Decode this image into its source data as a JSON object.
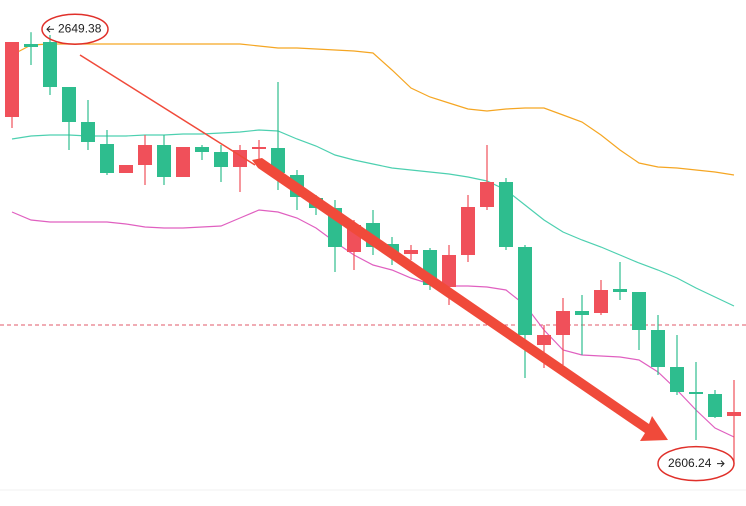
{
  "chart_data": {
    "type": "candlestick",
    "up_color": "#f0505a",
    "down_color": "#2ebd8e",
    "ylim": [
      2602.0,
      2652.6
    ],
    "open": [
      2640.9,
      2648.2,
      2648.4,
      2643.9,
      2640.4,
      2638.2,
      2635.3,
      2636.1,
      2638.1,
      2634.9,
      2637.9,
      2637.4,
      2635.9,
      2637.7,
      2637.8,
      2635.1,
      2632.8,
      2631.8,
      2627.4,
      2630.3,
      2628.2,
      2627.2,
      2627.6,
      2623.9,
      2627.1,
      2631.9,
      2634.4,
      2627.9,
      2618.1,
      2619.1,
      2621.5,
      2621.3,
      2623.7,
      2623.4,
      2619.6,
      2615.9,
      2613.4,
      2613.2,
      2611.0
    ],
    "high": [
      2648.4,
      2649.38,
      2649.1,
      2643.9,
      2642.6,
      2639.6,
      2636.1,
      2639.1,
      2639.1,
      2637.9,
      2638.1,
      2638.1,
      2638.1,
      2638.6,
      2644.4,
      2635.6,
      2633.1,
      2632.6,
      2630.6,
      2631.6,
      2628.9,
      2628.1,
      2627.8,
      2628.1,
      2633.1,
      2638.1,
      2634.8,
      2628.1,
      2620.1,
      2622.8,
      2623.1,
      2624.6,
      2626.4,
      2623.4,
      2621.1,
      2619.1,
      2616.4,
      2613.6,
      2614.6
    ],
    "low": [
      2639.8,
      2646.1,
      2643.1,
      2637.6,
      2637.6,
      2635.1,
      2635.3,
      2634.1,
      2634.1,
      2634.9,
      2636.6,
      2634.4,
      2633.4,
      2636.6,
      2633.6,
      2631.6,
      2631.1,
      2625.4,
      2625.6,
      2627.1,
      2626.1,
      2626.6,
      2623.6,
      2622.1,
      2626.4,
      2631.6,
      2627.6,
      2614.8,
      2615.8,
      2616.1,
      2617.1,
      2621.1,
      2622.6,
      2617.6,
      2615.1,
      2613.1,
      2608.6,
      2610.8,
      2606.24
    ],
    "close": [
      2648.4,
      2647.9,
      2643.9,
      2640.4,
      2638.4,
      2635.3,
      2636.1,
      2638.1,
      2634.9,
      2637.9,
      2637.4,
      2635.9,
      2637.6,
      2637.9,
      2635.3,
      2632.9,
      2631.8,
      2627.9,
      2630.1,
      2627.9,
      2627.4,
      2627.6,
      2624.1,
      2627.1,
      2631.9,
      2634.4,
      2627.9,
      2619.1,
      2619.1,
      2621.5,
      2621.1,
      2623.6,
      2623.4,
      2619.6,
      2615.9,
      2613.4,
      2613.2,
      2610.9,
      2611.4
    ],
    "bands": [
      {
        "color": "#f5a623",
        "values": [
          2647.1,
          2648.1,
          2648.2,
          2648.2,
          2648.2,
          2648.2,
          2648.2,
          2648.2,
          2648.2,
          2648.2,
          2648.2,
          2648.2,
          2648.2,
          2648.0,
          2647.8,
          2647.8,
          2647.7,
          2647.6,
          2647.5,
          2647.3,
          2645.6,
          2643.8,
          2642.9,
          2642.3,
          2641.7,
          2641.5,
          2641.7,
          2641.8,
          2641.8,
          2641.1,
          2640.4,
          2639.1,
          2637.6,
          2636.3,
          2635.9,
          2635.8,
          2635.6,
          2635.4,
          2635.1
        ]
      },
      {
        "color": "#4dd0b0",
        "values": [
          2638.7,
          2639.0,
          2639.1,
          2639.1,
          2639.0,
          2639.0,
          2639.0,
          2639.1,
          2639.1,
          2639.2,
          2639.2,
          2639.3,
          2639.4,
          2639.6,
          2639.5,
          2638.7,
          2638.0,
          2637.1,
          2636.6,
          2636.2,
          2635.8,
          2635.6,
          2635.4,
          2635.2,
          2634.9,
          2634.5,
          2633.6,
          2632.1,
          2630.6,
          2629.4,
          2628.6,
          2627.9,
          2627.1,
          2626.3,
          2625.6,
          2624.8,
          2623.8,
          2622.9,
          2622.0
        ]
      },
      {
        "color": "#e060c0",
        "values": [
          2631.4,
          2630.6,
          2630.4,
          2630.4,
          2630.4,
          2630.4,
          2630.2,
          2629.9,
          2629.8,
          2629.8,
          2629.9,
          2630.0,
          2630.8,
          2631.6,
          2631.4,
          2630.8,
          2629.8,
          2628.4,
          2627.1,
          2626.1,
          2625.6,
          2624.8,
          2624.2,
          2624.0,
          2624.0,
          2623.9,
          2623.6,
          2622.1,
          2619.6,
          2617.6,
          2617.1,
          2617.0,
          2616.9,
          2616.6,
          2615.4,
          2613.6,
          2611.6,
          2609.8,
          2608.9
        ]
      }
    ],
    "price_line": {
      "value": 2620.1,
      "color": "#e05a6a"
    }
  }
}
